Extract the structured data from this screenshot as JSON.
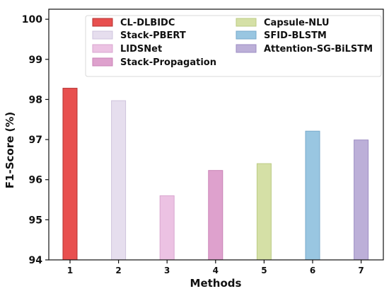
{
  "chart_data": {
    "type": "bar",
    "xlabel": "Methods",
    "ylabel": "F1-Score (%)",
    "categories": [
      "1",
      "2",
      "3",
      "4",
      "5",
      "6",
      "7"
    ],
    "ylim": [
      94,
      100.25
    ],
    "yticks": [
      "94",
      "95",
      "96",
      "97",
      "98",
      "99",
      "100"
    ],
    "series": [
      {
        "name": "CL-DLBIDC",
        "color": "#e8504f",
        "edge": "#b43232",
        "value": 98.28
      },
      {
        "name": "Stack-PBERT",
        "color": "#e6deee",
        "edge": "#cfc4dd",
        "value": 97.97
      },
      {
        "name": "LIDSNet",
        "color": "#ecc2e3",
        "edge": "#d9a6cf",
        "value": 95.6
      },
      {
        "name": "Stack-Propagation",
        "color": "#dea1cd",
        "edge": "#c982b6",
        "value": 96.23
      },
      {
        "name": "Capsule-NLU",
        "color": "#d5e0a6",
        "edge": "#bccb84",
        "value": 96.4
      },
      {
        "name": "SFID-BLSTM",
        "color": "#99c6e1",
        "edge": "#78aacb",
        "value": 97.21
      },
      {
        "name": "Attention-SG-BiLSTM",
        "color": "#bcafd8",
        "edge": "#9d8ec3",
        "value": 96.99
      }
    ],
    "legend": {
      "position": "top",
      "columns": 2
    },
    "grid": false
  }
}
